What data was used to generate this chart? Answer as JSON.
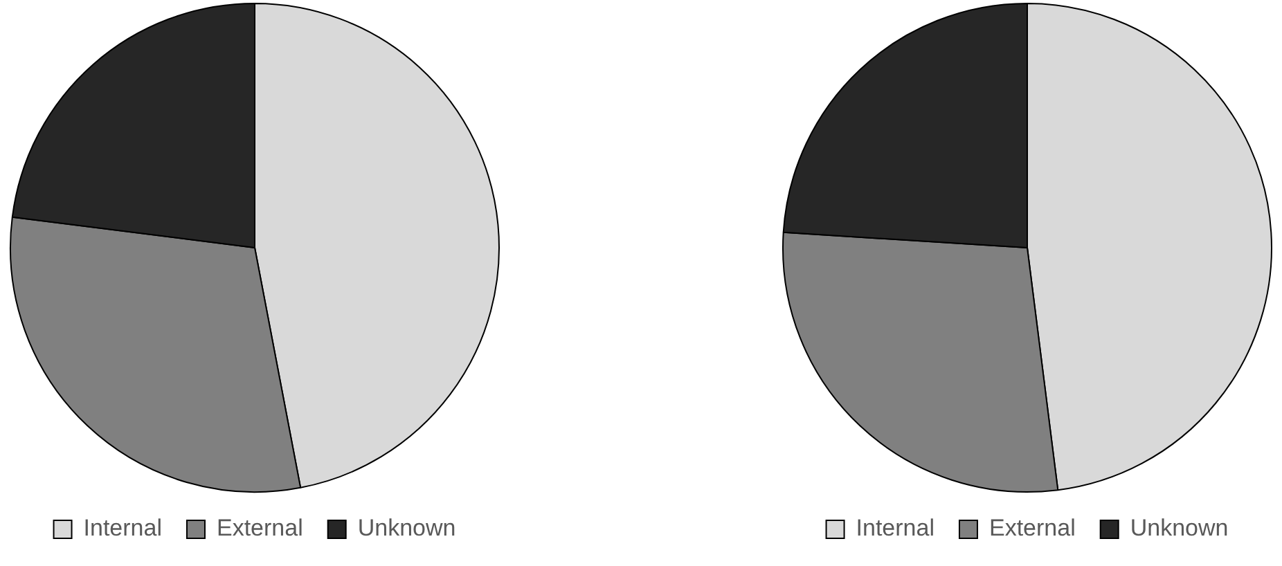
{
  "chart_data": [
    {
      "type": "pie",
      "categories": [
        "Internal",
        "External",
        "Unknown"
      ],
      "values": [
        47,
        30,
        23
      ],
      "colors": [
        "#d9d9d9",
        "#808080",
        "#262626"
      ],
      "legend": "bottom"
    },
    {
      "type": "pie",
      "categories": [
        "Internal",
        "External",
        "Unknown"
      ],
      "values": [
        48,
        28,
        24
      ],
      "colors": [
        "#d9d9d9",
        "#808080",
        "#262626"
      ],
      "legend": "bottom"
    }
  ]
}
